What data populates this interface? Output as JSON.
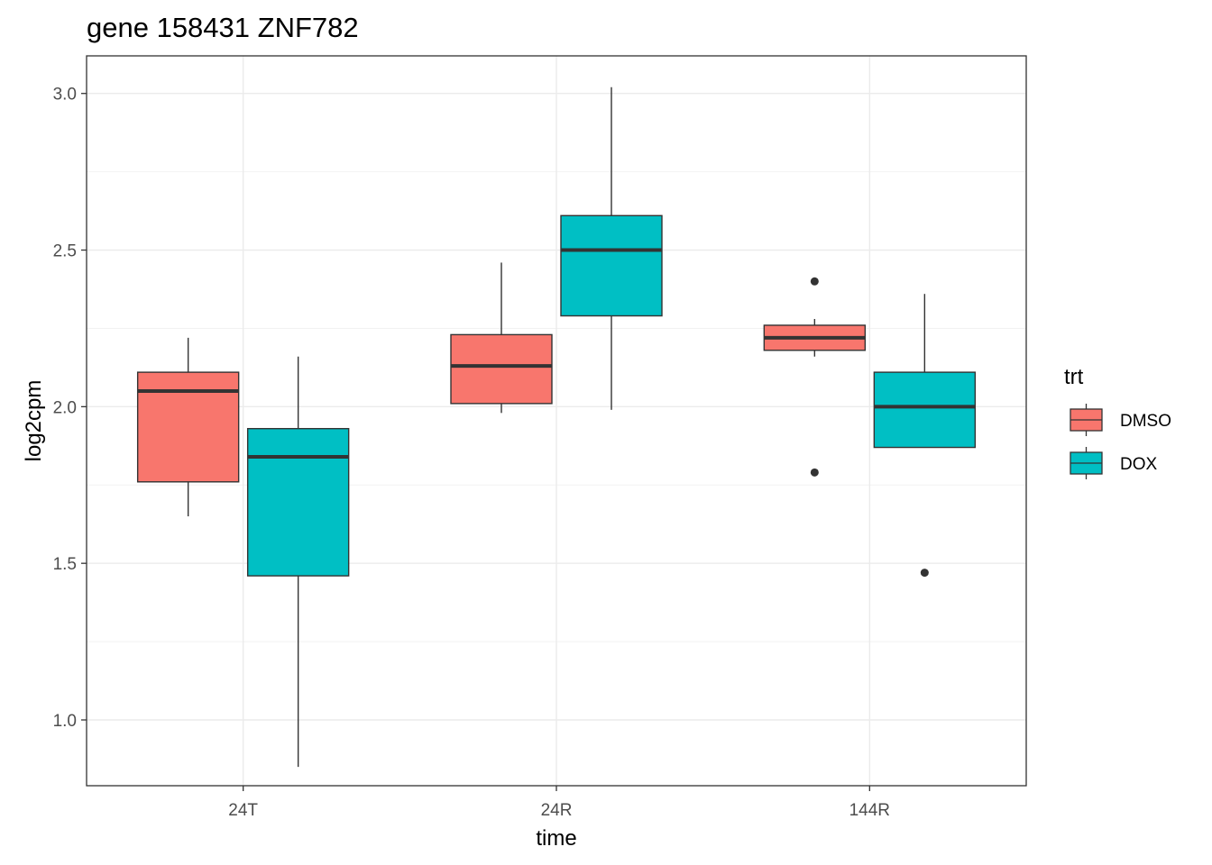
{
  "chart_data": {
    "type": "boxplot",
    "title": "gene 158431 ZNF782",
    "xlabel": "time",
    "ylabel": "log2cpm",
    "categories": [
      "24T",
      "24R",
      "144R"
    ],
    "ylim": [
      0.79,
      3.12
    ],
    "yticks": [
      1.0,
      1.5,
      2.0,
      2.5,
      3.0
    ],
    "ytick_labels": [
      "1.0",
      "1.5",
      "2.0",
      "2.5",
      "3.0"
    ],
    "grid": true,
    "legend": {
      "title": "trt",
      "position": "right"
    },
    "series": [
      {
        "name": "DMSO",
        "color": "#F8766D",
        "boxes": [
          {
            "category": "24T",
            "min": 1.65,
            "q1": 1.76,
            "median": 2.05,
            "q3": 2.11,
            "max": 2.22,
            "outliers": []
          },
          {
            "category": "24R",
            "min": 1.98,
            "q1": 2.01,
            "median": 2.13,
            "q3": 2.23,
            "max": 2.46,
            "outliers": []
          },
          {
            "category": "144R",
            "min": 2.16,
            "q1": 2.18,
            "median": 2.22,
            "q3": 2.26,
            "max": 2.28,
            "outliers": [
              2.4,
              1.79
            ]
          }
        ]
      },
      {
        "name": "DOX",
        "color": "#00BFC4",
        "boxes": [
          {
            "category": "24T",
            "min": 0.85,
            "q1": 1.46,
            "median": 1.84,
            "q3": 1.93,
            "max": 2.16,
            "outliers": []
          },
          {
            "category": "24R",
            "min": 1.99,
            "q1": 2.29,
            "median": 2.5,
            "q3": 2.61,
            "max": 3.02,
            "outliers": []
          },
          {
            "category": "144R",
            "min": 1.87,
            "q1": 1.87,
            "median": 2.0,
            "q3": 2.11,
            "max": 2.36,
            "outliers": [
              1.47
            ]
          }
        ]
      }
    ]
  }
}
